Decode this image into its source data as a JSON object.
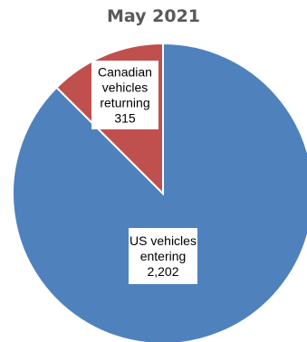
{
  "chart_data": {
    "type": "pie",
    "title": "May 2021",
    "slices": [
      {
        "label_lines": [
          "US vehicles",
          "entering",
          "2,202"
        ],
        "category": "US vehicles entering",
        "value": 2202,
        "color": "#4f81bd"
      },
      {
        "label_lines": [
          "Canadian",
          "vehicles",
          "returning",
          "315"
        ],
        "category": "Canadian vehicles returning",
        "value": 315,
        "color": "#c0504d"
      }
    ],
    "legend": "none"
  }
}
